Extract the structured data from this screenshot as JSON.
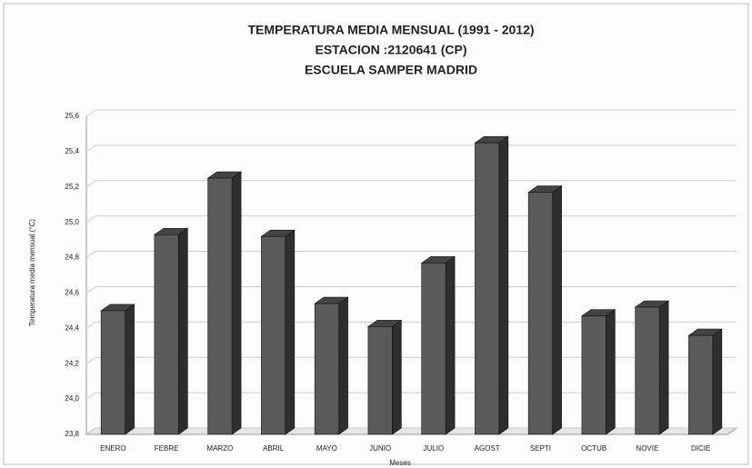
{
  "chart_data": {
    "type": "bar",
    "title": [
      "TEMPERATURA MEDIA MENSUAL (1991 - 2012)",
      "ESTACION :2120641 (CP)",
      "ESCUELA SAMPER MADRID"
    ],
    "y_label": "Temperatura media mensual (°C)",
    "x_label": "Meses",
    "categories": [
      "ENERO",
      "FEBRE",
      "MARZO",
      "ABRIL",
      "MAYO",
      "JUNIO",
      "JULIO",
      "AGOST",
      "SEPTI",
      "OCTUB",
      "NOVIE",
      "DICIE"
    ],
    "values": [
      24.5,
      24.93,
      25.25,
      24.92,
      24.54,
      24.41,
      24.77,
      25.45,
      25.17,
      24.47,
      24.52,
      24.36
    ],
    "color": "#5a5a5a",
    "ylim": [
      23.8,
      25.6
    ],
    "yticks": [
      {
        "value": 23.8,
        "label": "23,8"
      },
      {
        "value": 24.0,
        "label": "24,0"
      },
      {
        "value": 24.2,
        "label": "24,2"
      },
      {
        "value": 24.4,
        "label": "24,4"
      },
      {
        "value": 24.6,
        "label": "24,6"
      },
      {
        "value": 24.8,
        "label": "24,8"
      },
      {
        "value": 25.0,
        "label": "25,0"
      },
      {
        "value": 25.2,
        "label": "25,2"
      },
      {
        "value": 25.4,
        "label": "25,4"
      },
      {
        "value": 25.6,
        "label": "25,6"
      }
    ],
    "grid": true
  }
}
